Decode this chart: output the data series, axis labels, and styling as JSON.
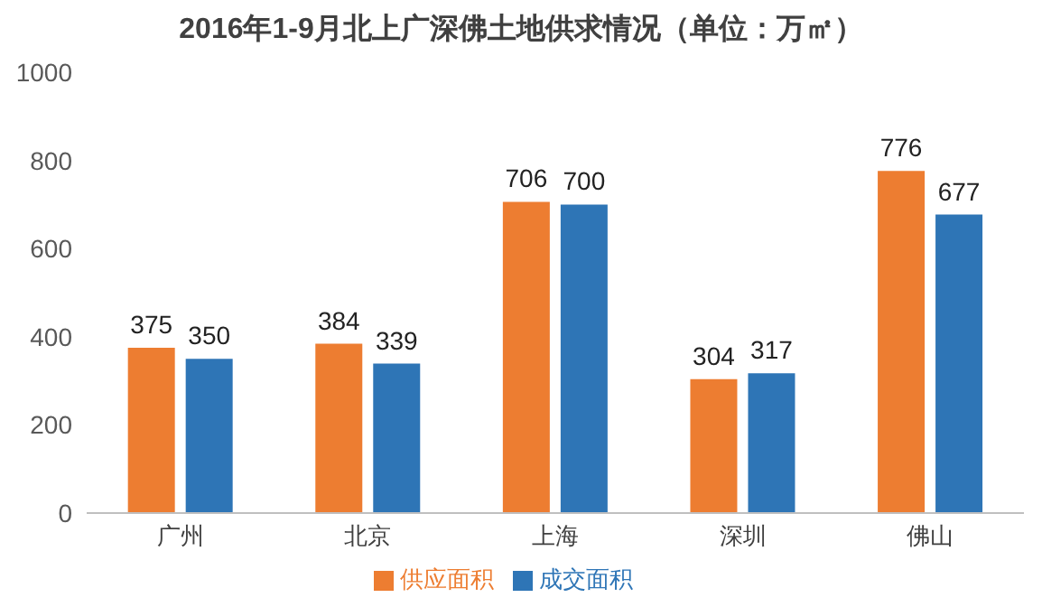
{
  "chart_data": {
    "type": "bar",
    "title": "2016年1-9月北上广深佛土地供求情况（单位：万㎡）",
    "categories": [
      "广州",
      "北京",
      "上海",
      "深圳",
      "佛山"
    ],
    "series": [
      {
        "name": "供应面积",
        "color": "#ed7d31",
        "values": [
          375,
          384,
          706,
          304,
          776
        ]
      },
      {
        "name": "成交面积",
        "color": "#2e75b6",
        "values": [
          350,
          339,
          700,
          317,
          677
        ]
      }
    ],
    "ylim": [
      0,
      1000
    ],
    "yticks": [
      0,
      200,
      400,
      600,
      800,
      1000
    ],
    "grid": false,
    "legend": "bottom",
    "data_labels": true
  }
}
